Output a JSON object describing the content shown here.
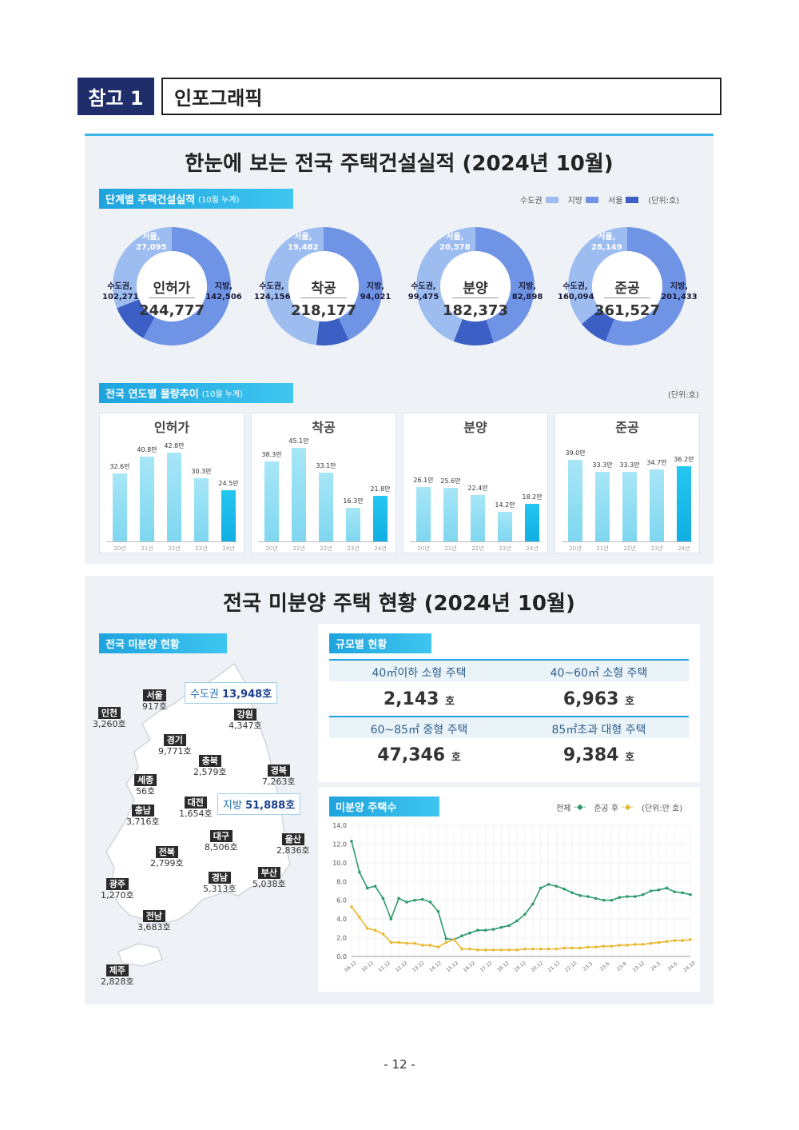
{
  "header": {
    "badge": "참고 1",
    "title": "인포그래픽"
  },
  "section1": {
    "title": "한눈에 보는 전국 주택건설실적 (2024년 10월)",
    "tag1": "단계별 주택건설실적",
    "tag1_sub": "(10월 누계)",
    "legend": {
      "metro": "수도권",
      "regional": "지방",
      "seoul": "서울",
      "unit": "(단위:호)"
    },
    "colors": {
      "metro": "#9dbdf0",
      "regional": "#6f94e6",
      "seoul": "#3b5fc4"
    },
    "donuts": [
      {
        "title": "인허가",
        "total": "244,777",
        "seoul_label": "서울,",
        "seoul": "27,095",
        "metro_label": "수도권,",
        "metro": "102,271",
        "regional_label": "지방,",
        "regional": "142,506",
        "shares": {
          "seoul": 0.11,
          "metro": 0.42,
          "regional": 0.58
        }
      },
      {
        "title": "착공",
        "total": "218,177",
        "seoul_label": "서울,",
        "seoul": "19,482",
        "metro_label": "수도권,",
        "metro": "124,156",
        "regional_label": "지방,",
        "regional": "94,021",
        "shares": {
          "seoul": 0.09,
          "metro": 0.57,
          "regional": 0.43
        }
      },
      {
        "title": "분양",
        "total": "182,373",
        "seoul_label": "서울,",
        "seoul": "20,578",
        "metro_label": "수도권,",
        "metro": "99,475",
        "regional_label": "지방,",
        "regional": "82,898",
        "shares": {
          "seoul": 0.11,
          "metro": 0.55,
          "regional": 0.45
        }
      },
      {
        "title": "준공",
        "total": "361,527",
        "seoul_label": "서울,",
        "seoul": "28,149",
        "metro_label": "수도권,",
        "metro": "160,094",
        "regional_label": "지방,",
        "regional": "201,433",
        "shares": {
          "seoul": 0.08,
          "metro": 0.44,
          "regional": 0.56
        }
      }
    ],
    "tag2": "전국 연도별 물량추이",
    "tag2_sub": "(10월 누계)",
    "unit2": "(단위:호)",
    "bar_years": [
      "20년",
      "21년",
      "22년",
      "23년",
      "24년"
    ]
  },
  "chart_data": [
    {
      "type": "bar",
      "title": "인허가",
      "categories": [
        "20년",
        "21년",
        "22년",
        "23년",
        "24년"
      ],
      "values": [
        32.6,
        40.8,
        42.8,
        30.3,
        24.5
      ],
      "labels": [
        "32.6만",
        "40.8만",
        "42.8만",
        "30.3만",
        "24.5만"
      ]
    },
    {
      "type": "bar",
      "title": "착공",
      "categories": [
        "20년",
        "21년",
        "22년",
        "23년",
        "24년"
      ],
      "values": [
        38.3,
        45.1,
        33.1,
        16.3,
        21.8
      ],
      "labels": [
        "38.3만",
        "45.1만",
        "33.1만",
        "16.3만",
        "21.8만"
      ]
    },
    {
      "type": "bar",
      "title": "분양",
      "categories": [
        "20년",
        "21년",
        "22년",
        "23년",
        "24년"
      ],
      "values": [
        26.1,
        25.6,
        22.4,
        14.2,
        18.2
      ],
      "labels": [
        "26.1만",
        "25.6만",
        "22.4만",
        "14.2만",
        "18.2만"
      ]
    },
    {
      "type": "bar",
      "title": "준공",
      "categories": [
        "20년",
        "21년",
        "22년",
        "23년",
        "24년"
      ],
      "values": [
        39.0,
        33.3,
        33.3,
        34.7,
        36.2
      ],
      "labels": [
        "39.0만",
        "33.3만",
        "33.3만",
        "34.7만",
        "36.2만"
      ]
    },
    {
      "type": "line",
      "title": "미분양 주택수",
      "legend": [
        "전체",
        "준공 후"
      ],
      "unit": "(단위:만 호)",
      "ylim": [
        0,
        14
      ],
      "yticks": [
        "0.0",
        "2.0",
        "4.0",
        "6.0",
        "8.0",
        "10.0",
        "12.0",
        "14.0"
      ],
      "xticks": [
        "09.12",
        "10.12",
        "11.12",
        "12.12",
        "13.12",
        "14.12",
        "15.12",
        "16.12",
        "17.12",
        "18.12",
        "19.12",
        "20.12",
        "21.12",
        "22.12",
        "23.3",
        "23.6",
        "23.9",
        "23.12",
        "24.3",
        "24.6",
        "24.10"
      ],
      "series": [
        {
          "name": "전체",
          "color": "#2e9a6a",
          "values": [
            12.3,
            9.0,
            7.3,
            7.5,
            6.2,
            4.0,
            6.2,
            5.8,
            6.0,
            6.1,
            5.8,
            4.8,
            1.9,
            1.8,
            2.2,
            2.5,
            2.8,
            2.8,
            2.9,
            3.1,
            3.3,
            3.8,
            4.5,
            5.6,
            7.3,
            7.7,
            7.5,
            7.2,
            6.8,
            6.5,
            6.4,
            6.2,
            6.0,
            6.0,
            6.3,
            6.4,
            6.4,
            6.6,
            7.0,
            7.1,
            7.3,
            6.9,
            6.8,
            6.6
          ]
        },
        {
          "name": "준공 후",
          "color": "#e8b830",
          "values": [
            5.3,
            4.2,
            3.0,
            2.8,
            2.4,
            1.5,
            1.5,
            1.4,
            1.4,
            1.2,
            1.2,
            1.0,
            1.5,
            1.8,
            0.8,
            0.8,
            0.7,
            0.7,
            0.7,
            0.7,
            0.7,
            0.7,
            0.8,
            0.8,
            0.8,
            0.8,
            0.8,
            0.9,
            0.9,
            0.9,
            1.0,
            1.0,
            1.1,
            1.1,
            1.2,
            1.2,
            1.3,
            1.3,
            1.4,
            1.5,
            1.6,
            1.7,
            1.7,
            1.8
          ]
        }
      ]
    }
  ],
  "section2": {
    "title": "전국 미분양 주택 현황 (2024년 10월)",
    "tag_map": "전국 미분양 현황",
    "metro_callout": {
      "label": "수도권",
      "value": "13,948호"
    },
    "regional_callout": {
      "label": "지방",
      "value": "51,888호"
    },
    "regions": [
      {
        "name": "서울",
        "value": "917호"
      },
      {
        "name": "인천",
        "value": "3,260호"
      },
      {
        "name": "경기",
        "value": "9,771호"
      },
      {
        "name": "강원",
        "value": "4,347호"
      },
      {
        "name": "충북",
        "value": "2,579호"
      },
      {
        "name": "세종",
        "value": "56호"
      },
      {
        "name": "경북",
        "value": "7,263호"
      },
      {
        "name": "충남",
        "value": "3,716호"
      },
      {
        "name": "대전",
        "value": "1,654호"
      },
      {
        "name": "대구",
        "value": "8,506호"
      },
      {
        "name": "울산",
        "value": "2,836호"
      },
      {
        "name": "전북",
        "value": "2,799호"
      },
      {
        "name": "부산",
        "value": "5,038호"
      },
      {
        "name": "경남",
        "value": "5,313호"
      },
      {
        "name": "광주",
        "value": "1,270호"
      },
      {
        "name": "전남",
        "value": "3,683호"
      },
      {
        "name": "제주",
        "value": "2,828호"
      }
    ],
    "tag_size": "규모별 현황",
    "sizes": [
      {
        "label": "40㎡이하 소형 주택",
        "value": "2,143",
        "unit": "호"
      },
      {
        "label": "40~60㎡ 소형 주택",
        "value": "6,963",
        "unit": "호"
      },
      {
        "label": "60~85㎡ 중형 주택",
        "value": "47,346",
        "unit": "호"
      },
      {
        "label": "85㎡초과 대형 주택",
        "value": "9,384",
        "unit": "호"
      }
    ],
    "tag_line": "미분양 주택수",
    "line_legend": {
      "all": "전체",
      "after": "준공 후",
      "unit": "(단위:만 호)"
    }
  },
  "page_number": "- 12 -"
}
